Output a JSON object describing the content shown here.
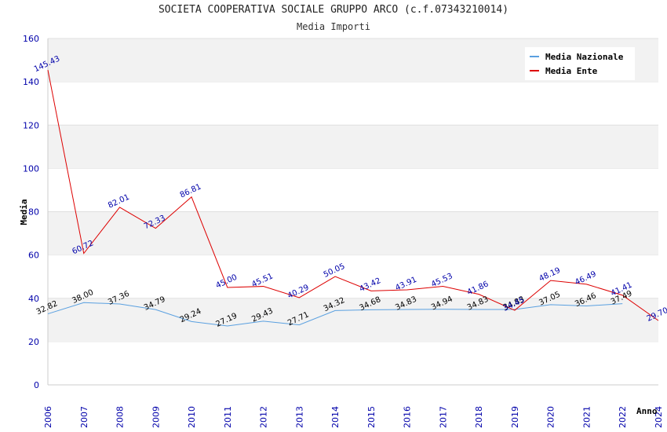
{
  "chart_data": {
    "type": "line",
    "title": "SOCIETA COOPERATIVA SOCIALE GRUPPO ARCO (c.f.07343210014)",
    "subtitle": "Media Importi",
    "xlabel": "Anno",
    "ylabel": "Media",
    "ylim": [
      0,
      160
    ],
    "yticks": [
      0,
      20,
      40,
      60,
      80,
      100,
      120,
      140,
      160
    ],
    "categories": [
      "2006",
      "2007",
      "2008",
      "2009",
      "2010",
      "2011",
      "2012",
      "2013",
      "2014",
      "2015",
      "2016",
      "2017",
      "2018",
      "2019",
      "2020",
      "2021",
      "2022",
      "2024"
    ],
    "grid": true,
    "legend_position": "top-right",
    "series": [
      {
        "name": "Media Nazionale",
        "color": "#5aa0e0",
        "label_color": "#000000",
        "values": [
          32.82,
          38.0,
          37.36,
          34.79,
          29.24,
          27.19,
          29.43,
          27.71,
          34.32,
          34.68,
          34.83,
          34.94,
          34.83,
          34.83,
          37.05,
          36.46,
          37.49,
          null
        ],
        "labels": [
          "32.82",
          "38.00",
          "37.36",
          "34.79",
          "29.24",
          "27.19",
          "29.43",
          "27.71",
          "34.32",
          "34.68",
          "34.83",
          "34.94",
          "34.83",
          "34.83",
          "37.05",
          "36.46",
          "37.49",
          ""
        ]
      },
      {
        "name": "Media Ente",
        "color": "#dd0000",
        "label_color": "#0000aa",
        "values": [
          145.43,
          60.72,
          82.01,
          72.33,
          86.81,
          45.0,
          45.51,
          40.29,
          50.05,
          43.42,
          43.91,
          45.53,
          41.86,
          34.45,
          48.19,
          46.49,
          41.41,
          29.7
        ],
        "labels": [
          "145.43",
          "60.72",
          "82.01",
          "72.33",
          "86.81",
          "45.00",
          "45.51",
          "40.29",
          "50.05",
          "43.42",
          "43.91",
          "45.53",
          "41.86",
          "34.45",
          "48.19",
          "46.49",
          "41.41",
          "29.70"
        ]
      }
    ]
  }
}
